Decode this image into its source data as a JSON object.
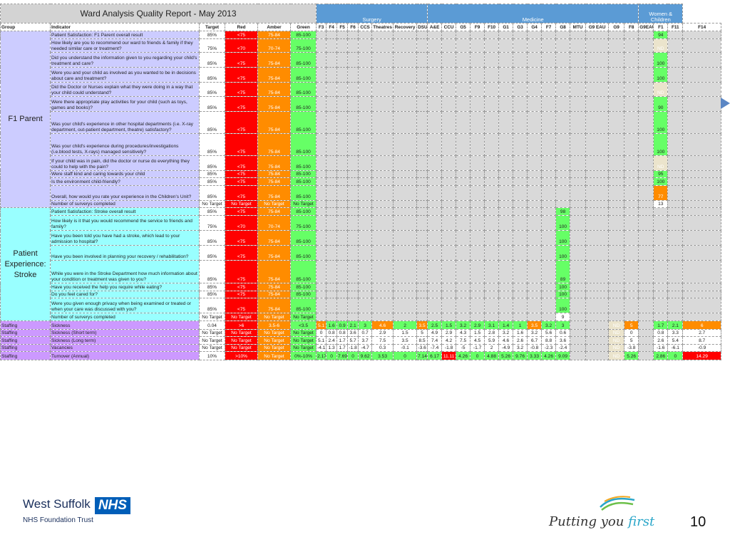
{
  "report": {
    "title": "Ward Analysis Quality Report - May 2013",
    "divisions": {
      "surgery": "Surgery",
      "medicine": "Medicine",
      "women_children": "Women & Children"
    },
    "headers": {
      "group": "Group",
      "indicator": "Indicator",
      "target": "Target",
      "red": "Red",
      "amber": "Amber",
      "green": "Green"
    },
    "wards": [
      "F3",
      "F4",
      "F5",
      "F6",
      "CCS",
      "Theatres",
      "Recovery",
      "DSU",
      "A&E",
      "CCU",
      "G5",
      "F9",
      "F10",
      "G1",
      "G3",
      "G4",
      "F7",
      "G8",
      "MTU",
      "G9 EAU",
      "G9",
      "F8",
      "G9EAU",
      "F1",
      "F11",
      "F14"
    ]
  },
  "groups": [
    {
      "name": "F1 Parent",
      "rows": [
        {
          "indicator": "Patient Satisfaction: F1 Parent overall result",
          "target": "85%",
          "red": "<75",
          "amber": "75-84",
          "green": "85-100",
          "values": {
            "F1": {
              "v": "94",
              "c": "g"
            }
          }
        },
        {
          "indicator": "How likely are you to recommend our ward to friends & family if they needed similar care or treatment?",
          "target": "75%",
          "red": "<70",
          "amber": "70-74",
          "green": "75-100",
          "values": {
            "F1": {
              "v": "ND",
              "c": "n"
            }
          }
        },
        {
          "indicator": "Did you understand the information given to you regarding your child's treatment and care?",
          "target": "85%",
          "red": "<75",
          "amber": "75-84",
          "green": "85-100",
          "values": {
            "F1": {
              "v": "100",
              "c": "g"
            }
          }
        },
        {
          "indicator": "Were you and your child as involved as you wanted to be in decisions about care and treatment?",
          "target": "85%",
          "red": "<75",
          "amber": "75-84",
          "green": "85-100",
          "values": {
            "F1": {
              "v": "100",
              "c": "g"
            }
          }
        },
        {
          "indicator": "Did the Doctor or Nurses explain what they were doing in a way that your child could understand?",
          "target": "85%",
          "red": "<75",
          "amber": "75-84",
          "green": "85-100",
          "values": {
            "F1": {
              "v": "ND",
              "c": "n"
            }
          }
        },
        {
          "indicator": "Were there appropriate play activities for your child (such as toys, games and books)?",
          "target": "85%",
          "red": "<75",
          "amber": "75-84",
          "green": "85-100",
          "values": {
            "F1": {
              "v": "90",
              "c": "g"
            }
          }
        },
        {
          "indicator": "Was your child's experience in other hospital departments (i.e. X-ray department, out-patient department, theatre) satisfactory?",
          "target": "85%",
          "red": "<75",
          "amber": "75-84",
          "green": "85-100",
          "values": {
            "F1": {
              "v": "100",
              "c": "g"
            }
          }
        },
        {
          "indicator": "Was your child's experience during procedures/investigations (i.e.blood tests, X-rays) managed sensitively?",
          "target": "85%",
          "red": "<75",
          "amber": "75-84",
          "green": "85-100",
          "values": {
            "F1": {
              "v": "100",
              "c": "g"
            }
          }
        },
        {
          "indicator": "If your child was in pain, did the doctor or nurse do everything they could to help with the pain?",
          "target": "85%",
          "red": "<75",
          "amber": "75-84",
          "green": "85-100",
          "values": {
            "F1": {
              "v": "ND",
              "c": "n"
            }
          }
        },
        {
          "indicator": "Were staff kind and caring towards your child",
          "target": "85%",
          "red": "<75",
          "amber": "75-84",
          "green": "85-100",
          "values": {
            "F1": {
              "v": "95",
              "c": "g"
            }
          }
        },
        {
          "indicator": "Is the environment child-friendly?",
          "target": "85%",
          "red": "<75",
          "amber": "75-84",
          "green": "85-100",
          "values": {
            "F1": {
              "v": "100",
              "c": "g"
            }
          }
        },
        {
          "indicator": "Overall, how would you rate your experience in the Children's Unit?",
          "target": "85%",
          "red": "<75",
          "amber": "75-84",
          "green": "85-100",
          "values": {
            "F1": {
              "v": "77",
              "c": "o"
            }
          }
        },
        {
          "indicator": "Number of surverys completed",
          "target": "No Target",
          "red": "No Target",
          "amber": "No Target",
          "green": "No Target",
          "values": {
            "F1": {
              "v": "13",
              "c": "w"
            }
          }
        }
      ]
    },
    {
      "name": "Patient Experience: Stroke",
      "rows": [
        {
          "indicator": "Patient Satisfaction: Stroke overall result",
          "target": "85%",
          "red": "<75",
          "amber": "75-84",
          "green": "85-100",
          "values": {
            "G8": {
              "v": "98",
              "c": "g"
            }
          }
        },
        {
          "indicator": "How likely is it that you would recommend the service to friends and family?",
          "target": "75%",
          "red": "<70",
          "amber": "70-74",
          "green": "75-100",
          "values": {
            "G8": {
              "v": "100",
              "c": "g"
            }
          }
        },
        {
          "indicator": "Have you been told you have had a stroke, which lead to your admission to hospital?",
          "target": "85%",
          "red": "<75",
          "amber": "75-84",
          "green": "85-100",
          "values": {
            "G8": {
              "v": "100",
              "c": "g"
            }
          }
        },
        {
          "indicator": "Have you been involved in planning your recovery / rehabilitation?",
          "target": "85%",
          "red": "<75",
          "amber": "75-84",
          "green": "85-100",
          "values": {
            "G8": {
              "v": "100",
              "c": "g"
            }
          }
        },
        {
          "indicator": "While you were in the Stroke Department how much information about your condition or treatment was given to you?",
          "target": "85%",
          "red": "<75",
          "amber": "75-84",
          "green": "85-100",
          "values": {
            "G8": {
              "v": "89",
              "c": "g"
            }
          }
        },
        {
          "indicator": "Have you received the help you require while eating?",
          "target": "85%",
          "red": "<75",
          "amber": "75-84",
          "green": "85-100",
          "values": {
            "G8": {
              "v": "100",
              "c": "g"
            }
          }
        },
        {
          "indicator": "Do you feel cared for?",
          "target": "85%",
          "red": "<75",
          "amber": "75-84",
          "green": "85-100",
          "values": {
            "G8": {
              "v": "100",
              "c": "g"
            }
          }
        },
        {
          "indicator": "Were you given enough privacy when being examined or treated or when your care was discussed with you?",
          "target": "85%",
          "red": "<75",
          "amber": "75-84",
          "green": "85-100",
          "values": {
            "G8": {
              "v": "100",
              "c": "g"
            }
          }
        },
        {
          "indicator": "Number of surverys completed",
          "target": "No Target",
          "red": "No Target",
          "amber": "No Target",
          "green": "No Target",
          "values": {
            "G8": {
              "v": "9",
              "c": "w"
            }
          }
        }
      ]
    },
    {
      "name": "Staffing",
      "rows": [
        {
          "indicator": "Sickness",
          "target": "0.04",
          "red": ">6",
          "amber": "3.5-6",
          "green": "<3.5",
          "values": {
            "F3": {
              "v": "5.1",
              "c": "o"
            },
            "F4": {
              "v": "1.6",
              "c": "g"
            },
            "F5": {
              "v": "0.9",
              "c": "g"
            },
            "F6": {
              "v": "2.1",
              "c": "g"
            },
            "CCS": {
              "v": "3",
              "c": "g"
            },
            "Theatres": {
              "v": "4.6",
              "c": "o"
            },
            "Recovery": {
              "v": "2",
              "c": "g"
            },
            "DSU": {
              "v": "3.5",
              "c": "o"
            },
            "A&E": {
              "v": "2.5",
              "c": "g"
            },
            "CCU": {
              "v": "1.5",
              "c": "g"
            },
            "G5": {
              "v": "3.2",
              "c": "g"
            },
            "F9": {
              "v": "2.9",
              "c": "g"
            },
            "F10": {
              "v": "3.1",
              "c": "g"
            },
            "G1": {
              "v": "1.4",
              "c": "g"
            },
            "G3": {
              "v": "1",
              "c": "g"
            },
            "G4": {
              "v": "3.5",
              "c": "o"
            },
            "F7": {
              "v": "3.2",
              "c": "g"
            },
            "G8": {
              "v": "3",
              "c": "g"
            },
            "G9": {
              "v": "ND",
              "c": "n"
            },
            "F8": {
              "v": "5",
              "c": "o"
            },
            "F1": {
              "v": "1.7",
              "c": "g"
            },
            "F11": {
              "v": "2.1",
              "c": "g"
            },
            "F14": {
              "v": "6",
              "c": "o"
            }
          }
        },
        {
          "indicator": "Sickness (Short term)",
          "target": "No Target",
          "red": "No Target",
          "amber": "No Target",
          "green": "No Target",
          "values": {
            "F3": {
              "v": "0",
              "c": "w"
            },
            "F4": {
              "v": "0.8",
              "c": "w"
            },
            "F5": {
              "v": "0.8",
              "c": "w"
            },
            "F6": {
              "v": "3.6",
              "c": "w"
            },
            "CCS": {
              "v": "0.7",
              "c": "w"
            },
            "Theatres": {
              "v": "2.9",
              "c": "w"
            },
            "Recovery": {
              "v": "1.5",
              "c": "w"
            },
            "DSU": {
              "v": "5",
              "c": "w"
            },
            "A&E": {
              "v": "4.9",
              "c": "w"
            },
            "CCU": {
              "v": "2.9",
              "c": "w"
            },
            "G5": {
              "v": "4.3",
              "c": "w"
            },
            "F9": {
              "v": "1.5",
              "c": "w"
            },
            "F10": {
              "v": "2.8",
              "c": "w"
            },
            "G1": {
              "v": "3.2",
              "c": "w"
            },
            "G3": {
              "v": "1.6",
              "c": "w"
            },
            "G4": {
              "v": "3.2",
              "c": "w"
            },
            "F7": {
              "v": "5.6",
              "c": "w"
            },
            "G8": {
              "v": "0.6",
              "c": "w"
            },
            "G9": {
              "v": "ND",
              "c": "n"
            },
            "F8": {
              "v": "0",
              "c": "w"
            },
            "F1": {
              "v": "0.8",
              "c": "w"
            },
            "F11": {
              "v": "3.3",
              "c": "w"
            },
            "F14": {
              "v": "2.7",
              "c": "w"
            }
          }
        },
        {
          "indicator": "Sickness (Long term)",
          "target": "No Target",
          "red": "No Target",
          "amber": "No Target",
          "green": "No Target",
          "values": {
            "F3": {
              "v": "5.1",
              "c": "w"
            },
            "F4": {
              "v": "2.4",
              "c": "w"
            },
            "F5": {
              "v": "1.7",
              "c": "w"
            },
            "F6": {
              "v": "5.7",
              "c": "w"
            },
            "CCS": {
              "v": "3.7",
              "c": "w"
            },
            "Theatres": {
              "v": "7.5",
              "c": "w"
            },
            "Recovery": {
              "v": "3.5",
              "c": "w"
            },
            "DSU": {
              "v": "8.5",
              "c": "w"
            },
            "A&E": {
              "v": "7.4",
              "c": "w"
            },
            "CCU": {
              "v": "4.2",
              "c": "w"
            },
            "G5": {
              "v": "7.5",
              "c": "w"
            },
            "F9": {
              "v": "4.5",
              "c": "w"
            },
            "F10": {
              "v": "5.9",
              "c": "w"
            },
            "G1": {
              "v": "4.6",
              "c": "w"
            },
            "G3": {
              "v": "2.6",
              "c": "w"
            },
            "G4": {
              "v": "6.7",
              "c": "w"
            },
            "F7": {
              "v": "8.8",
              "c": "w"
            },
            "G8": {
              "v": "3.6",
              "c": "w"
            },
            "G9": {
              "v": "ND",
              "c": "n"
            },
            "F8": {
              "v": "5",
              "c": "w"
            },
            "F1": {
              "v": "2.6",
              "c": "w"
            },
            "F11": {
              "v": "5.4",
              "c": "w"
            },
            "F14": {
              "v": "8.7",
              "c": "w"
            }
          }
        },
        {
          "indicator": "Vacancies",
          "target": "No Target",
          "red": "No Target",
          "amber": "No Target",
          "green": "No Target",
          "values": {
            "F3": {
              "v": "-4.1",
              "c": "w"
            },
            "F4": {
              "v": "1.3",
              "c": "w"
            },
            "F5": {
              "v": "1.7",
              "c": "w"
            },
            "F6": {
              "v": "-1.8",
              "c": "w"
            },
            "CCS": {
              "v": "-4.7",
              "c": "w"
            },
            "Theatres": {
              "v": "0.3",
              "c": "w"
            },
            "Recovery": {
              "v": "-0.1",
              "c": "w"
            },
            "DSU": {
              "v": "-3.6",
              "c": "w"
            },
            "A&E": {
              "v": "-7.4",
              "c": "w"
            },
            "CCU": {
              "v": "-1.8",
              "c": "w"
            },
            "G5": {
              "v": "-5",
              "c": "w"
            },
            "F9": {
              "v": "-1.7",
              "c": "w"
            },
            "F10": {
              "v": "2",
              "c": "w"
            },
            "G1": {
              "v": "-4.9",
              "c": "w"
            },
            "G3": {
              "v": "3.2",
              "c": "w"
            },
            "G4": {
              "v": "-0.8",
              "c": "w"
            },
            "F7": {
              "v": "-2.3",
              "c": "w"
            },
            "G8": {
              "v": "-2.4",
              "c": "w"
            },
            "G9": {
              "v": "ND",
              "c": "n"
            },
            "F8": {
              "v": "-3.8",
              "c": "w"
            },
            "F1": {
              "v": "-1.6",
              "c": "w"
            },
            "F11": {
              "v": "-6.1",
              "c": "w"
            },
            "F14": {
              "v": "-0.9",
              "c": "w"
            }
          }
        },
        {
          "indicator": "Turnover (Annual)",
          "target": "10%",
          "red": ">10%",
          "amber": "No Target",
          "green": "0%-10%",
          "values": {
            "F3": {
              "v": "2.17",
              "c": "g"
            },
            "F4": {
              "v": "0",
              "c": "g"
            },
            "F5": {
              "v": "7.69",
              "c": "g"
            },
            "F6": {
              "v": "0",
              "c": "g"
            },
            "CCS": {
              "v": "9.62",
              "c": "g"
            },
            "Theatres": {
              "v": "3.53",
              "c": "g"
            },
            "Recovery": {
              "v": "0",
              "c": "g"
            },
            "DSU": {
              "v": "7.14",
              "c": "g"
            },
            "A&E": {
              "v": "6.17",
              "c": "g"
            },
            "CCU": {
              "v": "11.11",
              "c": "r"
            },
            "G5": {
              "v": "4.26",
              "c": "g"
            },
            "F9": {
              "v": "0",
              "c": "g"
            },
            "F10": {
              "v": "4.88",
              "c": "g"
            },
            "G1": {
              "v": "5.26",
              "c": "g"
            },
            "G3": {
              "v": "9.76",
              "c": "g"
            },
            "G4": {
              "v": "3.33",
              "c": "g"
            },
            "F7": {
              "v": "4.26",
              "c": "g"
            },
            "G8": {
              "v": "9.09",
              "c": "g"
            },
            "G9": {
              "v": "ND",
              "c": "n"
            },
            "F8": {
              "v": "5.26",
              "c": "g"
            },
            "F1": {
              "v": "2.86",
              "c": "g"
            },
            "F11": {
              "v": "0",
              "c": "g"
            },
            "F14": {
              "v": "14.29",
              "c": "r"
            }
          }
        }
      ]
    }
  ],
  "footer": {
    "org_name": "West Suffolk",
    "nhs_badge": "NHS",
    "org_subtitle": "NHS Foundation Trust",
    "slogan_main": "Putting you ",
    "slogan_accent": "first",
    "page_number": "10"
  },
  "colors": {
    "red": "#ff0000",
    "amber": "#ff8c00",
    "green": "#66ff66",
    "nhs_blue": "#005eb8",
    "division_blue": "#5b9bd5",
    "f1_parent_group": "#ccccff",
    "stroke_group": "#99ffff",
    "staffing_group": "#cc99ff",
    "no_data": "#ebe4cc"
  },
  "icons": [
    "arrow-pointer-icon",
    "swoosh-logo-icon"
  ]
}
